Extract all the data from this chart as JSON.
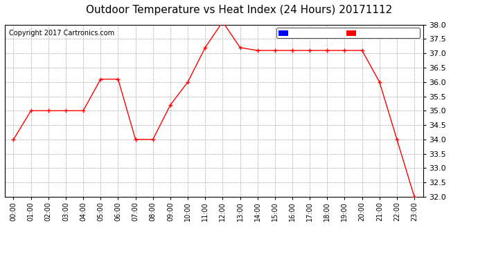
{
  "title": "Outdoor Temperature vs Heat Index (24 Hours) 20171112",
  "copyright": "Copyright 2017 Cartronics.com",
  "x_labels": [
    "00:00",
    "01:00",
    "02:00",
    "03:00",
    "04:00",
    "05:00",
    "06:00",
    "07:00",
    "08:00",
    "09:00",
    "10:00",
    "11:00",
    "12:00",
    "13:00",
    "14:00",
    "15:00",
    "16:00",
    "17:00",
    "18:00",
    "19:00",
    "20:00",
    "21:00",
    "22:00",
    "23:00"
  ],
  "temperature": [
    34.0,
    35.0,
    35.0,
    35.0,
    35.0,
    36.1,
    36.1,
    34.0,
    34.0,
    35.2,
    36.0,
    37.2,
    38.1,
    37.2,
    37.1,
    37.1,
    37.1,
    37.1,
    37.1,
    37.1,
    37.1,
    36.0,
    34.0,
    32.0
  ],
  "heat_index": [
    34.0,
    35.0,
    35.0,
    35.0,
    35.0,
    36.1,
    36.1,
    34.0,
    34.0,
    35.2,
    36.0,
    37.2,
    38.1,
    37.2,
    37.1,
    37.1,
    37.1,
    37.1,
    37.1,
    37.1,
    37.1,
    36.0,
    34.0,
    32.0
  ],
  "ylim": [
    32.0,
    38.0
  ],
  "yticks": [
    32.0,
    32.5,
    33.0,
    33.5,
    34.0,
    34.5,
    35.0,
    35.5,
    36.0,
    36.5,
    37.0,
    37.5,
    38.0
  ],
  "temp_color": "#ff0000",
  "heat_index_color": "#ff0000",
  "bg_color": "#ffffff",
  "grid_color": "#aaaaaa",
  "title_fontsize": 11,
  "legend_heat_bg": "#0000ff",
  "legend_temp_bg": "#ff0000",
  "legend_text_color": "#ffffff"
}
